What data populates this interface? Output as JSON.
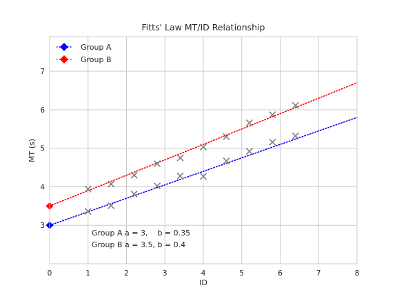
{
  "chart_data": {
    "type": "scatter",
    "title": "Fitts' Law MT/ID Relationship",
    "xlabel": "ID",
    "ylabel": "MT (s)",
    "xlim": [
      0,
      8
    ],
    "ylim": [
      2.0,
      7.9
    ],
    "xticks": [
      0,
      1,
      2,
      3,
      4,
      5,
      6,
      7,
      8
    ],
    "yticks": [
      3,
      4,
      5,
      6,
      7
    ],
    "grid": true,
    "legend_position": "top-left",
    "series": [
      {
        "name": "Group A",
        "color": "#0000ff",
        "intercept": 3,
        "slope": 0.35,
        "line": {
          "x": [
            0,
            8
          ],
          "y": [
            3.0,
            5.8
          ]
        },
        "points": {
          "x": [
            1.0,
            1.6,
            2.2,
            2.8,
            3.4,
            4.0,
            4.6,
            5.2,
            5.8,
            6.4
          ],
          "y": [
            3.36,
            3.51,
            3.81,
            4.02,
            4.28,
            4.27,
            4.67,
            4.92,
            5.16,
            5.32
          ]
        }
      },
      {
        "name": "Group B",
        "color": "#ff0000",
        "intercept": 3.5,
        "slope": 0.4,
        "line": {
          "x": [
            0,
            8
          ],
          "y": [
            3.5,
            6.7
          ]
        },
        "points": {
          "x": [
            1.0,
            1.6,
            2.2,
            2.8,
            3.4,
            4.0,
            4.6,
            5.2,
            5.8,
            6.4
          ],
          "y": [
            3.94,
            4.07,
            4.3,
            4.6,
            4.75,
            5.03,
            5.3,
            5.66,
            5.87,
            6.11
          ]
        }
      }
    ],
    "point_marker_color": "#808080",
    "annotation": {
      "line1": "Group A a = 3,    b = 0.35",
      "line2": "Group B a = 3.5, b = 0.4"
    }
  }
}
